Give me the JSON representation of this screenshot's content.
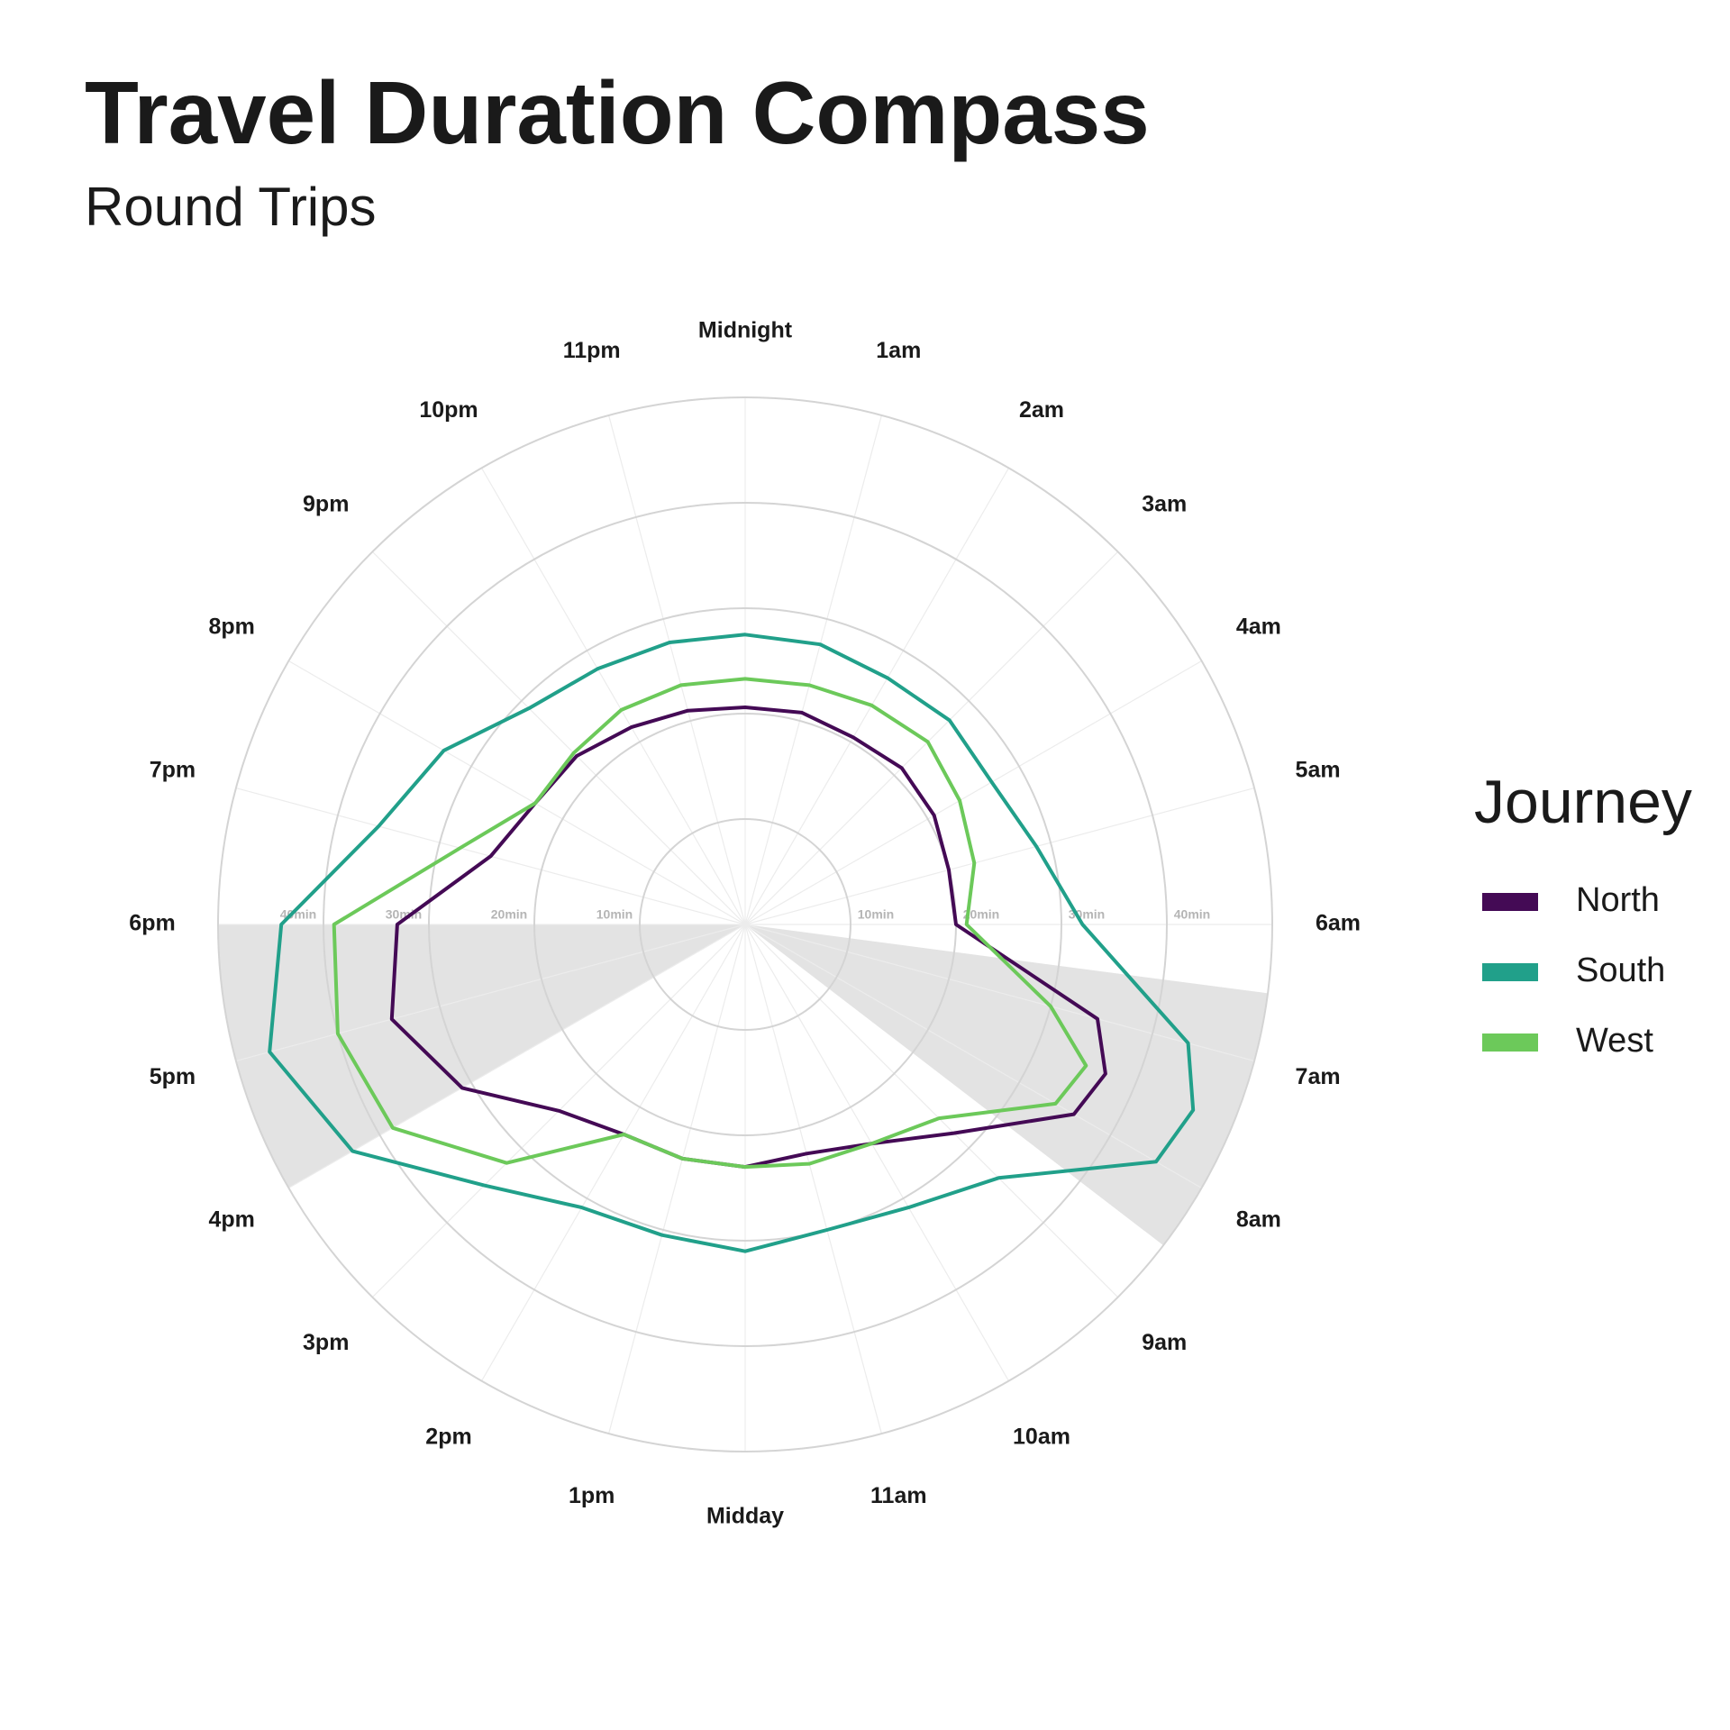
{
  "chart_data": {
    "type": "polar_line",
    "title": "Travel Duration Compass",
    "subtitle": "Round Trips",
    "legend_title": "Journey",
    "legend_position": "right",
    "xlim": [
      0,
      24
    ],
    "xticks": [
      {
        "value": 0,
        "label": "Midnight"
      },
      {
        "value": 1,
        "label": "1am"
      },
      {
        "value": 2,
        "label": "2am"
      },
      {
        "value": 3,
        "label": "3am"
      },
      {
        "value": 4,
        "label": "4am"
      },
      {
        "value": 5,
        "label": "5am"
      },
      {
        "value": 6,
        "label": "6am"
      },
      {
        "value": 7,
        "label": "7am"
      },
      {
        "value": 8,
        "label": "8am"
      },
      {
        "value": 9,
        "label": "9am"
      },
      {
        "value": 10,
        "label": "10am"
      },
      {
        "value": 11,
        "label": "11am"
      },
      {
        "value": 12,
        "label": "Midday"
      },
      {
        "value": 13,
        "label": "1pm"
      },
      {
        "value": 14,
        "label": "2pm"
      },
      {
        "value": 15,
        "label": "3pm"
      },
      {
        "value": 16,
        "label": "4pm"
      },
      {
        "value": 17,
        "label": "5pm"
      },
      {
        "value": 18,
        "label": "6pm"
      },
      {
        "value": 19,
        "label": "7pm"
      },
      {
        "value": 20,
        "label": "8pm"
      },
      {
        "value": 21,
        "label": "9pm"
      },
      {
        "value": 22,
        "label": "10pm"
      },
      {
        "value": 23,
        "label": "11pm"
      }
    ],
    "ylim": [
      0,
      50
    ],
    "yticks": [
      {
        "value": 10,
        "label": "10min"
      },
      {
        "value": 20,
        "label": "20min"
      },
      {
        "value": 30,
        "label": "30min"
      },
      {
        "value": 40,
        "label": "40min"
      }
    ],
    "shaded_ranges": [
      [
        6.5,
        8.5
      ],
      [
        16,
        18
      ]
    ],
    "x": [
      0,
      1,
      2,
      3,
      4,
      5,
      6,
      7,
      7.5,
      8,
      9,
      10,
      11,
      12,
      13,
      14,
      15,
      16,
      17,
      18,
      19,
      20,
      21,
      22,
      23
    ],
    "series": [
      {
        "name": "North",
        "color": "#440a55",
        "values": [
          20.6,
          20.8,
          20.5,
          21,
          20.7,
          20,
          20,
          34.6,
          37,
          36,
          28,
          24,
          22.5,
          23,
          23,
          23,
          25,
          31,
          34.7,
          33,
          25,
          23,
          22.6,
          21.6,
          21
        ]
      },
      {
        "name": "South",
        "color": "#21a08a",
        "values": [
          27.5,
          27.5,
          27,
          27.4,
          27,
          28.6,
          32,
          43.5,
          46,
          45,
          34,
          31,
          30,
          31,
          30.5,
          31,
          35,
          43,
          46.7,
          44,
          36,
          33,
          29,
          28,
          27.7
        ]
      },
      {
        "name": "West",
        "color": "#6cc95a",
        "values": [
          23.3,
          23.5,
          24,
          24.5,
          23.5,
          22.5,
          21,
          30,
          35,
          34,
          26,
          24,
          23.5,
          23,
          23,
          23,
          32,
          38.6,
          40,
          39,
          28,
          23,
          23,
          23.5,
          23.5
        ]
      }
    ]
  }
}
